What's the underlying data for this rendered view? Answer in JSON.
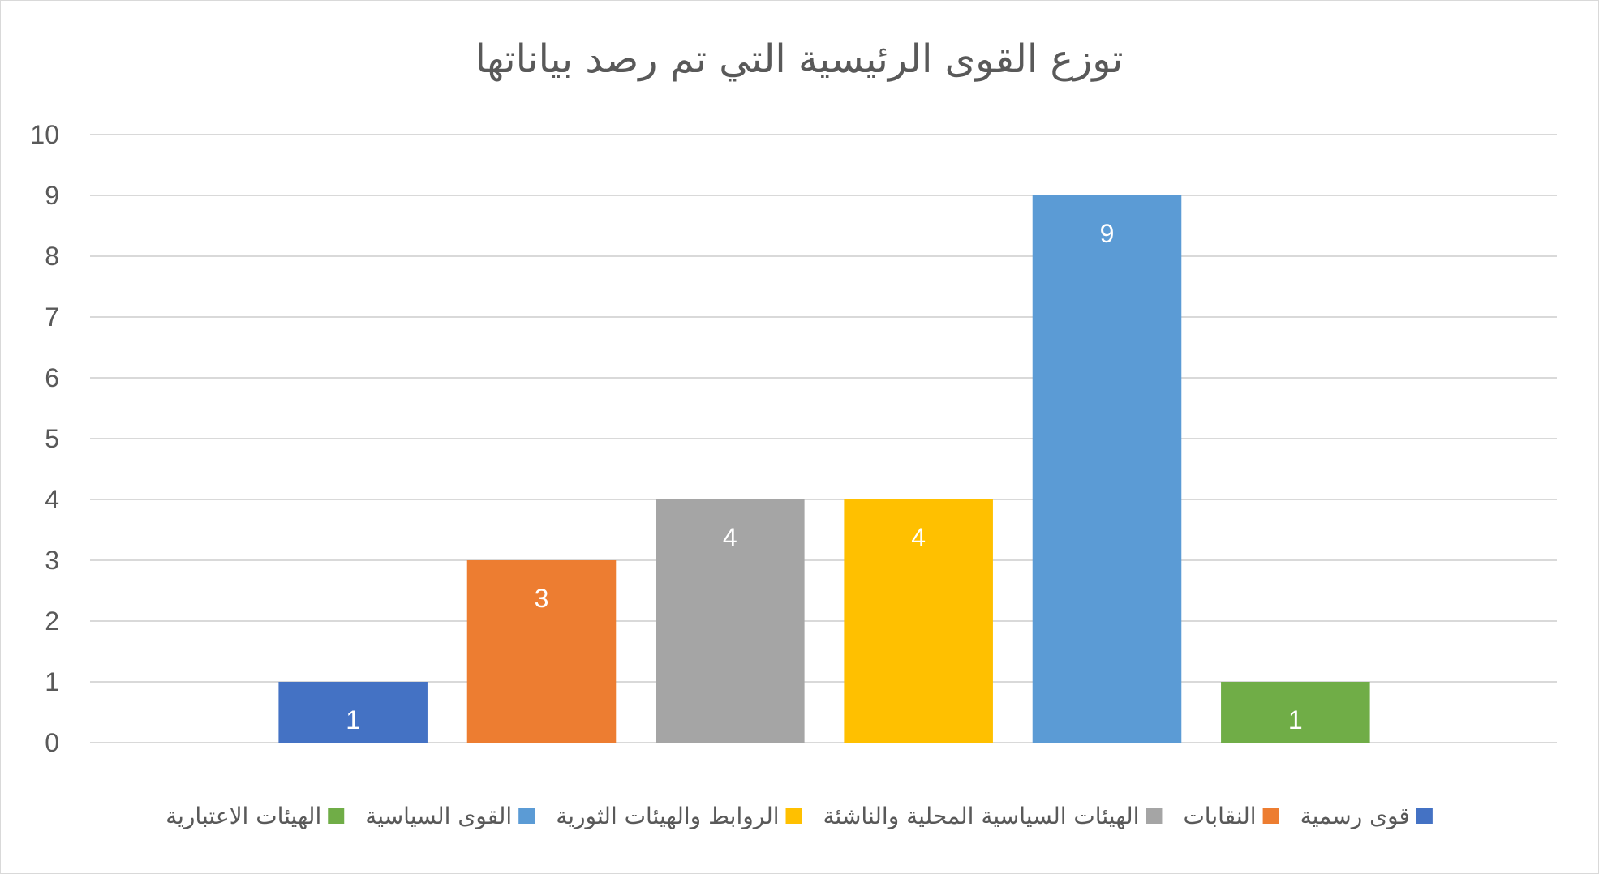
{
  "chart_data": {
    "type": "bar",
    "title": "توزع القوى الرئيسية التي تم رصد بياناتها",
    "xlabel": "",
    "ylabel": "",
    "ylim": [
      0,
      10
    ],
    "yticks": [
      0,
      1,
      2,
      3,
      4,
      5,
      6,
      7,
      8,
      9,
      10
    ],
    "grid": true,
    "legend_position": "bottom",
    "series": [
      {
        "name": "قوى رسمية",
        "value": 1,
        "color": "#4472C4"
      },
      {
        "name": "النقابات",
        "value": 3,
        "color": "#ED7D31"
      },
      {
        "name": "الهيئات السياسية المحلية والناشئة",
        "value": 4,
        "color": "#A5A5A5"
      },
      {
        "name": "الروابط والهيئات الثورية",
        "value": 4,
        "color": "#FFC000"
      },
      {
        "name": "القوى السياسية",
        "value": 9,
        "color": "#5B9BD5"
      },
      {
        "name": "الهيئات الاعتبارية",
        "value": 1,
        "color": "#70AD47"
      }
    ]
  }
}
